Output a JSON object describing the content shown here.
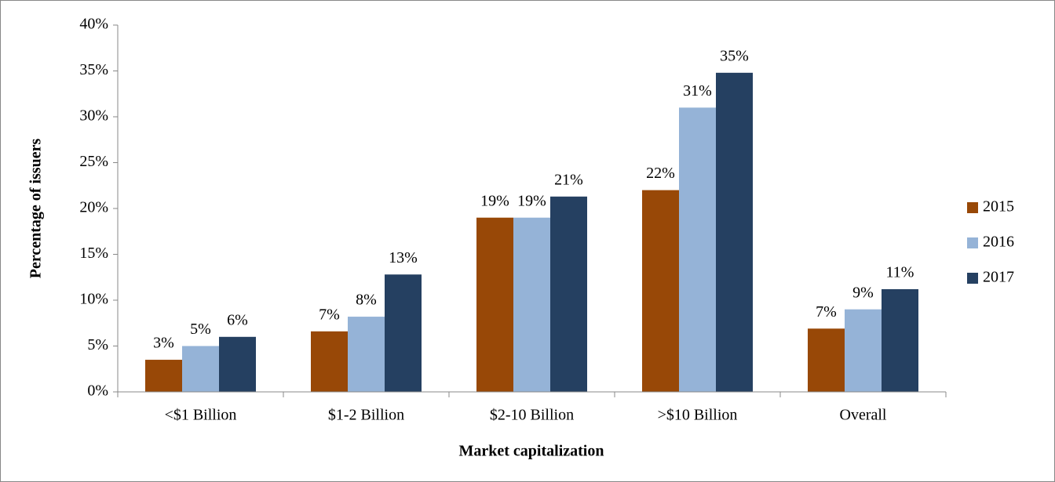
{
  "chart_data": {
    "type": "bar",
    "x_label": "Market capitalization",
    "y_label": "Percentage of issuers",
    "categories": [
      "<$1 Billion",
      "$1-2 Billion",
      "$2-10 Billion",
      ">$10 Billion",
      "Overall"
    ],
    "series": [
      {
        "name": "2015",
        "color": "#984807",
        "values": [
          3.5,
          6.6,
          19.0,
          22.0,
          6.9
        ],
        "value_labels": [
          "3%",
          "7%",
          "19%",
          "22%",
          "7%"
        ]
      },
      {
        "name": "2016",
        "color": "#95b3d7",
        "values": [
          5.0,
          8.2,
          19.0,
          31.0,
          9.0
        ],
        "value_labels": [
          "5%",
          "8%",
          "19%",
          "31%",
          "9%"
        ]
      },
      {
        "name": "2017",
        "color": "#254061",
        "values": [
          6.0,
          12.8,
          21.3,
          34.8,
          11.2
        ],
        "value_labels": [
          "6%",
          "13%",
          "21%",
          "35%",
          "11%"
        ]
      }
    ],
    "ylim": [
      0,
      40
    ],
    "yticks": [
      {
        "value": 0,
        "label": "0%"
      },
      {
        "value": 5,
        "label": "5%"
      },
      {
        "value": 10,
        "label": "10%"
      },
      {
        "value": 15,
        "label": "15%"
      },
      {
        "value": 20,
        "label": "20%"
      },
      {
        "value": 25,
        "label": "25%"
      },
      {
        "value": 30,
        "label": "30%"
      },
      {
        "value": 35,
        "label": "35%"
      },
      {
        "value": 40,
        "label": "40%"
      }
    ],
    "grid": false,
    "legend": "right"
  }
}
